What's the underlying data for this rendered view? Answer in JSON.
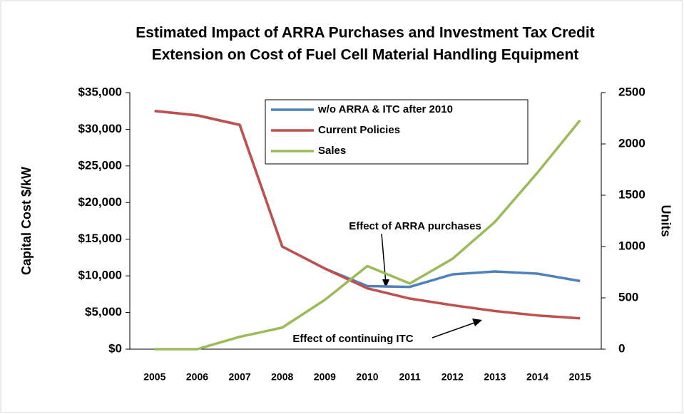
{
  "chart_data": {
    "type": "line",
    "title": [
      "Estimated Impact of ARRA Purchases and Investment Tax Credit",
      "Extension on Cost of Fuel Cell Material Handling Equipment"
    ],
    "categories": [
      "2005",
      "2006",
      "2007",
      "2008",
      "2009",
      "2010",
      "2011",
      "2012",
      "2013",
      "2014",
      "2015"
    ],
    "series": [
      {
        "name": "w/o ARRA & ITC after 2010",
        "color": "#4f81bd",
        "values": [
          32500,
          31900,
          30600,
          14000,
          11000,
          8600,
          8500,
          10200,
          10600,
          10300,
          9300
        ]
      },
      {
        "name": "Current Policies",
        "color": "#c0504d",
        "values": [
          32500,
          31900,
          30600,
          14000,
          11000,
          8300,
          6900,
          6000,
          5200,
          4600,
          4200
        ]
      },
      {
        "name": "Sales",
        "color": "#9bbb59",
        "axis": "y2",
        "values": [
          0,
          0,
          120,
          210,
          480,
          810,
          640,
          880,
          1240,
          1720,
          2230
        ]
      }
    ],
    "ylabel": "Capital Cost $/kW",
    "y2label": "Units",
    "ylim": [
      0,
      35000
    ],
    "yticks": [
      {
        "value": 0,
        "label": "$0"
      },
      {
        "value": 5000,
        "label": "$5,000"
      },
      {
        "value": 10000,
        "label": "$10,000"
      },
      {
        "value": 15000,
        "label": "$15,000"
      },
      {
        "value": 20000,
        "label": "$20,000"
      },
      {
        "value": 25000,
        "label": "$25,000"
      },
      {
        "value": 30000,
        "label": "$30,000"
      },
      {
        "value": 35000,
        "label": "$35,000"
      }
    ],
    "y2lim": [
      0,
      2500
    ],
    "y2ticks": [
      0,
      500,
      1000,
      1500,
      2000,
      2500
    ],
    "annotations": [
      "Effect of ARRA purchases",
      "Effect of continuing ITC"
    ],
    "legend": "top"
  }
}
